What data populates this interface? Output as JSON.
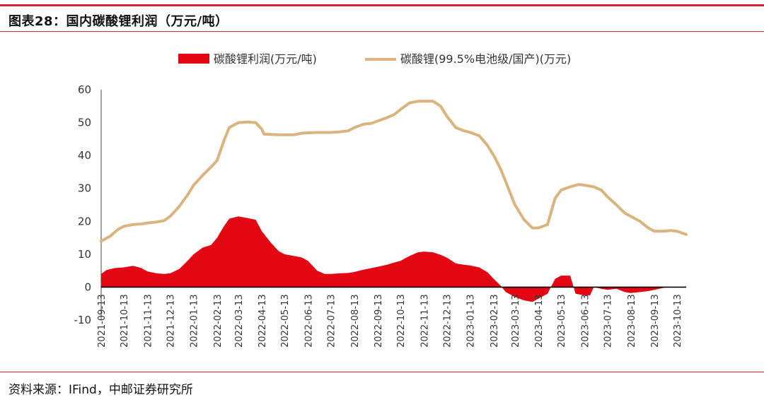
{
  "title": "图表28：国内碳酸锂利润（万元/吨）",
  "source": "资料来源：IFind，中邮证券研究所",
  "colors": {
    "accent": "#d7202a",
    "profit": "#e30613",
    "price": "#d9b47e"
  },
  "chart_data": {
    "type": "area",
    "xlabel": "",
    "ylabel": "",
    "ylim": [
      -10,
      60
    ],
    "yticks": [
      -10,
      0,
      10,
      20,
      30,
      40,
      50,
      60
    ],
    "grid": false,
    "legend": "top",
    "x_tick_labels": [
      "2021-09-13",
      "2021-10-13",
      "2021-11-13",
      "2021-12-13",
      "2022-01-13",
      "2022-02-13",
      "2022-03-13",
      "2022-04-13",
      "2022-05-13",
      "2022-06-13",
      "2022-07-13",
      "2022-08-13",
      "2022-09-13",
      "2022-10-13",
      "2022-11-13",
      "2022-12-13",
      "2023-01-13",
      "2023-02-13",
      "2023-03-13",
      "2023-04-13",
      "2023-05-13",
      "2023-06-13",
      "2023-07-13",
      "2023-08-13",
      "2023-09-13",
      "2023-10-13"
    ],
    "series": [
      {
        "name": "碳酸锂利润(万元/吨)",
        "type": "area",
        "color": "#e30613",
        "points": [
          [
            "2021-09-13",
            4.0
          ],
          [
            "2021-09-20",
            5.2
          ],
          [
            "2021-10-01",
            5.8
          ],
          [
            "2021-10-13",
            6.0
          ],
          [
            "2021-10-25",
            6.5
          ],
          [
            "2021-11-05",
            5.8
          ],
          [
            "2021-11-13",
            4.8
          ],
          [
            "2021-11-25",
            4.2
          ],
          [
            "2021-12-05",
            4.0
          ],
          [
            "2021-12-13",
            4.2
          ],
          [
            "2021-12-25",
            5.5
          ],
          [
            "2022-01-05",
            8.0
          ],
          [
            "2022-01-13",
            10.0
          ],
          [
            "2022-01-25",
            12.0
          ],
          [
            "2022-02-05",
            12.8
          ],
          [
            "2022-02-13",
            15.0
          ],
          [
            "2022-02-22",
            18.5
          ],
          [
            "2022-03-01",
            20.8
          ],
          [
            "2022-03-13",
            21.5
          ],
          [
            "2022-03-25",
            21.0
          ],
          [
            "2022-04-05",
            20.5
          ],
          [
            "2022-04-13",
            17.0
          ],
          [
            "2022-04-25",
            13.5
          ],
          [
            "2022-05-05",
            11.0
          ],
          [
            "2022-05-13",
            10.0
          ],
          [
            "2022-05-25",
            9.5
          ],
          [
            "2022-06-05",
            9.0
          ],
          [
            "2022-06-13",
            8.0
          ],
          [
            "2022-06-25",
            5.0
          ],
          [
            "2022-07-05",
            4.0
          ],
          [
            "2022-07-13",
            4.0
          ],
          [
            "2022-07-25",
            4.2
          ],
          [
            "2022-08-05",
            4.3
          ],
          [
            "2022-08-13",
            4.6
          ],
          [
            "2022-08-25",
            5.3
          ],
          [
            "2022-09-05",
            5.8
          ],
          [
            "2022-09-13",
            6.2
          ],
          [
            "2022-09-25",
            6.8
          ],
          [
            "2022-10-05",
            7.5
          ],
          [
            "2022-10-13",
            8.0
          ],
          [
            "2022-10-25",
            9.5
          ],
          [
            "2022-11-05",
            10.6
          ],
          [
            "2022-11-13",
            10.8
          ],
          [
            "2022-11-25",
            10.6
          ],
          [
            "2022-12-05",
            9.8
          ],
          [
            "2022-12-13",
            9.0
          ],
          [
            "2022-12-25",
            7.2
          ],
          [
            "2023-01-05",
            6.8
          ],
          [
            "2023-01-13",
            6.6
          ],
          [
            "2023-01-25",
            6.0
          ],
          [
            "2023-02-05",
            4.5
          ],
          [
            "2023-02-13",
            2.5
          ],
          [
            "2023-02-22",
            0.5
          ],
          [
            "2023-03-01",
            -1.5
          ],
          [
            "2023-03-13",
            -3.0
          ],
          [
            "2023-03-25",
            -4.0
          ],
          [
            "2023-04-05",
            -4.5
          ],
          [
            "2023-04-13",
            -3.5
          ],
          [
            "2023-04-25",
            -2.0
          ],
          [
            "2023-05-05",
            2.5
          ],
          [
            "2023-05-13",
            3.5
          ],
          [
            "2023-05-25",
            3.5
          ],
          [
            "2023-06-01",
            -2.0
          ],
          [
            "2023-06-13",
            -2.5
          ],
          [
            "2023-06-20",
            -2.5
          ],
          [
            "2023-06-25",
            0.0
          ],
          [
            "2023-07-05",
            -0.5
          ],
          [
            "2023-07-13",
            -0.8
          ],
          [
            "2023-07-25",
            -0.5
          ],
          [
            "2023-08-05",
            -1.5
          ],
          [
            "2023-08-13",
            -1.8
          ],
          [
            "2023-08-25",
            -1.5
          ],
          [
            "2023-09-05",
            -1.2
          ],
          [
            "2023-09-13",
            -0.8
          ],
          [
            "2023-09-25",
            -0.2
          ],
          [
            "2023-10-05",
            0.0
          ]
        ]
      },
      {
        "name": "碳酸锂(99.5%电池级/国产)(万元)",
        "type": "line",
        "color": "#d9b47e",
        "points": [
          [
            "2021-09-13",
            14.0
          ],
          [
            "2021-09-25",
            15.5
          ],
          [
            "2021-10-05",
            17.5
          ],
          [
            "2021-10-13",
            18.5
          ],
          [
            "2021-10-25",
            19.0
          ],
          [
            "2021-11-05",
            19.2
          ],
          [
            "2021-11-13",
            19.5
          ],
          [
            "2021-11-25",
            19.8
          ],
          [
            "2021-12-05",
            20.2
          ],
          [
            "2021-12-13",
            21.5
          ],
          [
            "2021-12-25",
            24.5
          ],
          [
            "2022-01-05",
            28.0
          ],
          [
            "2022-01-13",
            31.0
          ],
          [
            "2022-01-25",
            34.0
          ],
          [
            "2022-02-05",
            36.5
          ],
          [
            "2022-02-13",
            38.5
          ],
          [
            "2022-02-22",
            44.5
          ],
          [
            "2022-03-01",
            48.5
          ],
          [
            "2022-03-13",
            50.0
          ],
          [
            "2022-03-25",
            50.2
          ],
          [
            "2022-04-05",
            50.0
          ],
          [
            "2022-04-13",
            48.0
          ],
          [
            "2022-04-16",
            46.5
          ],
          [
            "2022-05-05",
            46.3
          ],
          [
            "2022-05-13",
            46.3
          ],
          [
            "2022-05-25",
            46.3
          ],
          [
            "2022-06-05",
            46.8
          ],
          [
            "2022-06-13",
            46.9
          ],
          [
            "2022-06-25",
            47.0
          ],
          [
            "2022-07-05",
            47.0
          ],
          [
            "2022-07-13",
            47.0
          ],
          [
            "2022-07-25",
            47.2
          ],
          [
            "2022-08-05",
            47.5
          ],
          [
            "2022-08-13",
            48.5
          ],
          [
            "2022-08-25",
            49.5
          ],
          [
            "2022-09-05",
            49.8
          ],
          [
            "2022-09-13",
            50.5
          ],
          [
            "2022-09-25",
            51.5
          ],
          [
            "2022-10-05",
            52.5
          ],
          [
            "2022-10-13",
            54.0
          ],
          [
            "2022-10-25",
            56.0
          ],
          [
            "2022-11-05",
            56.5
          ],
          [
            "2022-11-13",
            56.5
          ],
          [
            "2022-11-25",
            56.5
          ],
          [
            "2022-12-05",
            55.0
          ],
          [
            "2022-12-13",
            52.0
          ],
          [
            "2022-12-25",
            48.5
          ],
          [
            "2023-01-05",
            47.5
          ],
          [
            "2023-01-13",
            47.0
          ],
          [
            "2023-01-25",
            46.0
          ],
          [
            "2023-02-05",
            43.0
          ],
          [
            "2023-02-13",
            40.0
          ],
          [
            "2023-02-22",
            36.0
          ],
          [
            "2023-03-01",
            32.0
          ],
          [
            "2023-03-13",
            25.0
          ],
          [
            "2023-03-25",
            20.5
          ],
          [
            "2023-04-05",
            18.0
          ],
          [
            "2023-04-13",
            18.0
          ],
          [
            "2023-04-25",
            19.0
          ],
          [
            "2023-05-05",
            27.0
          ],
          [
            "2023-05-13",
            29.5
          ],
          [
            "2023-05-25",
            30.5
          ],
          [
            "2023-06-05",
            31.2
          ],
          [
            "2023-06-13",
            31.0
          ],
          [
            "2023-06-25",
            30.5
          ],
          [
            "2023-07-05",
            29.5
          ],
          [
            "2023-07-13",
            27.5
          ],
          [
            "2023-07-25",
            25.0
          ],
          [
            "2023-08-05",
            22.5
          ],
          [
            "2023-08-13",
            21.5
          ],
          [
            "2023-08-25",
            20.0
          ],
          [
            "2023-09-05",
            18.0
          ],
          [
            "2023-09-13",
            17.0
          ],
          [
            "2023-09-25",
            17.0
          ],
          [
            "2023-10-05",
            17.2
          ],
          [
            "2023-10-13",
            17.0
          ],
          [
            "2023-10-25",
            16.0
          ]
        ]
      }
    ]
  }
}
